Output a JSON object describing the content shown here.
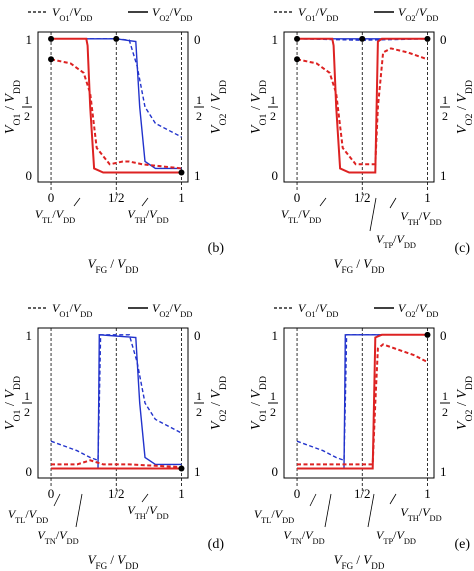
{
  "colors": {
    "vo1_color": "#2233cc",
    "vo2_color": "#dd2222",
    "axis": "#000000"
  },
  "chart_data": [
    {
      "panel": "b",
      "type": "line",
      "legend": [
        "- - - V_O1/V_DD",
        "—— V_O2/V_DD"
      ],
      "panel_label": "(b)",
      "xlabel": "V_FG / V_DD",
      "ylabel_left": "V_O1 / V_DD",
      "ylabel_right": "V_O2 / V_DD",
      "xticks": [
        "0",
        "1/2",
        "1"
      ],
      "yticks_left": [
        "0",
        "1/2",
        "1"
      ],
      "yticks_right": [
        "1",
        "1/2",
        "0"
      ],
      "xlim": [
        -0.1,
        1.05
      ],
      "ylim": [
        -0.05,
        1.05
      ],
      "markers": [
        "V_TL/V_DD",
        "V_TH/V_DD"
      ],
      "series": [
        {
          "color": "blue",
          "style": "dashed",
          "x": [
            0,
            0.2,
            0.5,
            0.6,
            0.66,
            0.72,
            0.8,
            1.0
          ],
          "y": [
            1.0,
            1.0,
            1.0,
            0.99,
            0.8,
            0.5,
            0.38,
            0.28
          ]
        },
        {
          "color": "blue",
          "style": "solid",
          "x": [
            0,
            0.5,
            0.65,
            0.68,
            0.72,
            0.8,
            1.0
          ],
          "y": [
            1.0,
            1.0,
            0.98,
            0.5,
            0.1,
            0.05,
            0.05
          ]
        },
        {
          "color": "red",
          "style": "dashed",
          "x": [
            0,
            0.15,
            0.25,
            0.3,
            0.35,
            0.45,
            0.55,
            0.6,
            0.7,
            1.0
          ],
          "y": [
            0.85,
            0.82,
            0.75,
            0.6,
            0.2,
            0.08,
            0.1,
            0.1,
            0.08,
            0.05
          ]
        },
        {
          "color": "red",
          "style": "solid",
          "x": [
            0,
            0.27,
            0.28,
            0.3,
            0.33,
            0.4,
            1.0
          ],
          "y": [
            1.0,
            1.0,
            0.95,
            0.5,
            0.05,
            0.02,
            0.02
          ]
        }
      ]
    },
    {
      "panel": "c",
      "type": "line",
      "legend": [
        "- - - V_O1/V_DD",
        "—— V_O2/V_DD"
      ],
      "panel_label": "(c)",
      "xlabel": "V_FG / V_DD",
      "ylabel_left": "V_O1 / V_DD",
      "ylabel_right": "V_O2 / V_DD",
      "xticks": [
        "0",
        "1/2",
        "1"
      ],
      "yticks_left": [
        "0",
        "1/2",
        "1"
      ],
      "yticks_right": [
        "1",
        "1/2",
        "0"
      ],
      "xlim": [
        -0.1,
        1.05
      ],
      "ylim": [
        -0.05,
        1.05
      ],
      "markers": [
        "V_TL/V_DD",
        "V_TH/V_DD",
        "V_TP/V_DD"
      ],
      "series": [
        {
          "color": "blue",
          "style": "dashed",
          "x": [
            0,
            0.5,
            1.0
          ],
          "y": [
            1.0,
            0.99,
            1.0
          ]
        },
        {
          "color": "blue",
          "style": "solid",
          "x": [
            0,
            1.0
          ],
          "y": [
            1.0,
            1.0
          ]
        },
        {
          "color": "red",
          "style": "dashed",
          "x": [
            0,
            0.15,
            0.25,
            0.3,
            0.35,
            0.45,
            0.6,
            0.62,
            0.66,
            0.72,
            0.85,
            1.0
          ],
          "y": [
            0.85,
            0.82,
            0.75,
            0.6,
            0.2,
            0.08,
            0.08,
            0.5,
            0.9,
            0.93,
            0.9,
            0.85
          ]
        },
        {
          "color": "red",
          "style": "solid",
          "x": [
            0,
            0.27,
            0.28,
            0.3,
            0.33,
            0.4,
            0.6,
            0.61,
            0.62,
            0.65,
            1.0
          ],
          "y": [
            1.0,
            1.0,
            0.95,
            0.5,
            0.05,
            0.02,
            0.02,
            0.5,
            0.98,
            1.0,
            1.0
          ]
        }
      ]
    },
    {
      "panel": "d",
      "type": "line",
      "legend": [
        "- - - V_O1/V_DD",
        "—— V_O2/V_DD"
      ],
      "panel_label": "(d)",
      "xlabel": "V_FG / V_DD",
      "ylabel_left": "V_O1 / V_DD",
      "ylabel_right": "V_O2 / V_DD",
      "xticks": [
        "0",
        "1/2",
        "1"
      ],
      "yticks_left": [
        "0",
        "1/2",
        "1"
      ],
      "yticks_right": [
        "1",
        "1/2",
        "0"
      ],
      "xlim": [
        -0.1,
        1.05
      ],
      "ylim": [
        -0.05,
        1.05
      ],
      "markers": [
        "V_TL/V_DD",
        "V_TN/V_DD",
        "V_TH/V_DD"
      ],
      "series": [
        {
          "color": "blue",
          "style": "dashed",
          "x": [
            0,
            0.2,
            0.3,
            0.36,
            0.37,
            0.38,
            0.6,
            0.66,
            0.72,
            0.8,
            1.0
          ],
          "y": [
            0.22,
            0.15,
            0.1,
            0.08,
            0.5,
            1.0,
            1.0,
            0.8,
            0.5,
            0.38,
            0.28
          ]
        },
        {
          "color": "blue",
          "style": "solid",
          "x": [
            0,
            0.36,
            0.365,
            0.37,
            0.65,
            0.68,
            0.72,
            0.8,
            1.0
          ],
          "y": [
            0.02,
            0.02,
            0.5,
            1.0,
            0.98,
            0.5,
            0.1,
            0.05,
            0.05
          ]
        },
        {
          "color": "red",
          "style": "dashed",
          "x": [
            0,
            0.2,
            0.3,
            0.4,
            0.6,
            1.0
          ],
          "y": [
            0.05,
            0.05,
            0.08,
            0.05,
            0.05,
            0.03
          ]
        },
        {
          "color": "red",
          "style": "solid",
          "x": [
            0,
            1.0
          ],
          "y": [
            0.02,
            0.02
          ]
        }
      ]
    },
    {
      "panel": "e",
      "type": "line",
      "legend": [
        "- - - V_O1/V_DD",
        "—— V_O2/V_DD"
      ],
      "panel_label": "(e)",
      "xlabel": "V_FG / V_DD",
      "ylabel_left": "V_O1 / V_DD",
      "ylabel_right": "V_O2 / V_DD",
      "xticks": [
        "0",
        "1/2",
        "1"
      ],
      "yticks_left": [
        "0",
        "1/2",
        "1"
      ],
      "yticks_right": [
        "1",
        "1/2",
        "0"
      ],
      "xlim": [
        -0.1,
        1.05
      ],
      "ylim": [
        -0.05,
        1.05
      ],
      "markers": [
        "V_TL/V_DD",
        "V_TN/V_DD",
        "V_TP/V_DD",
        "V_TH/V_DD"
      ],
      "series": [
        {
          "color": "blue",
          "style": "dashed",
          "x": [
            0,
            0.2,
            0.3,
            0.36,
            0.37,
            0.38,
            0.6,
            0.8,
            1.0
          ],
          "y": [
            0.22,
            0.15,
            0.1,
            0.08,
            0.5,
            1.0,
            1.0,
            1.0,
            1.0
          ]
        },
        {
          "color": "blue",
          "style": "solid",
          "x": [
            0,
            0.36,
            0.365,
            0.37,
            1.0
          ],
          "y": [
            0.02,
            0.02,
            0.5,
            1.0,
            1.0
          ]
        },
        {
          "color": "red",
          "style": "dashed",
          "x": [
            0,
            0.3,
            0.58,
            0.6,
            0.62,
            0.66,
            0.75,
            0.9,
            1.0
          ],
          "y": [
            0.05,
            0.05,
            0.05,
            0.5,
            0.9,
            0.93,
            0.9,
            0.85,
            0.8
          ]
        },
        {
          "color": "red",
          "style": "solid",
          "x": [
            0,
            0.58,
            0.59,
            0.6,
            0.65,
            1.0
          ],
          "y": [
            0.02,
            0.02,
            0.5,
            0.98,
            1.0,
            1.0
          ]
        }
      ]
    }
  ]
}
